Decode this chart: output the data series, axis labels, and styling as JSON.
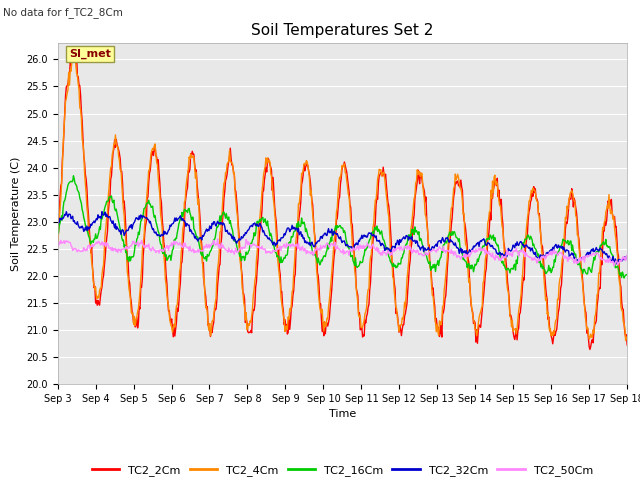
{
  "title": "Soil Temperatures Set 2",
  "top_left_text": "No data for f_TC2_8Cm",
  "xlabel": "Time",
  "ylabel": "Soil Temperature (C)",
  "ylim": [
    20.0,
    26.3
  ],
  "yticks": [
    20.0,
    20.5,
    21.0,
    21.5,
    22.0,
    22.5,
    23.0,
    23.5,
    24.0,
    24.5,
    25.0,
    25.5,
    26.0
  ],
  "background_color": "#ffffff",
  "plot_bg_color": "#e8e8e8",
  "legend_label": "SI_met",
  "series_colors": {
    "TC2_2Cm": "#ff0000",
    "TC2_4Cm": "#ff8800",
    "TC2_16Cm": "#00cc00",
    "TC2_32Cm": "#0000cc",
    "TC2_50Cm": "#ff88ff"
  },
  "series_linewidth": 1.0,
  "title_fontsize": 11,
  "axis_fontsize": 8,
  "tick_fontsize": 7
}
